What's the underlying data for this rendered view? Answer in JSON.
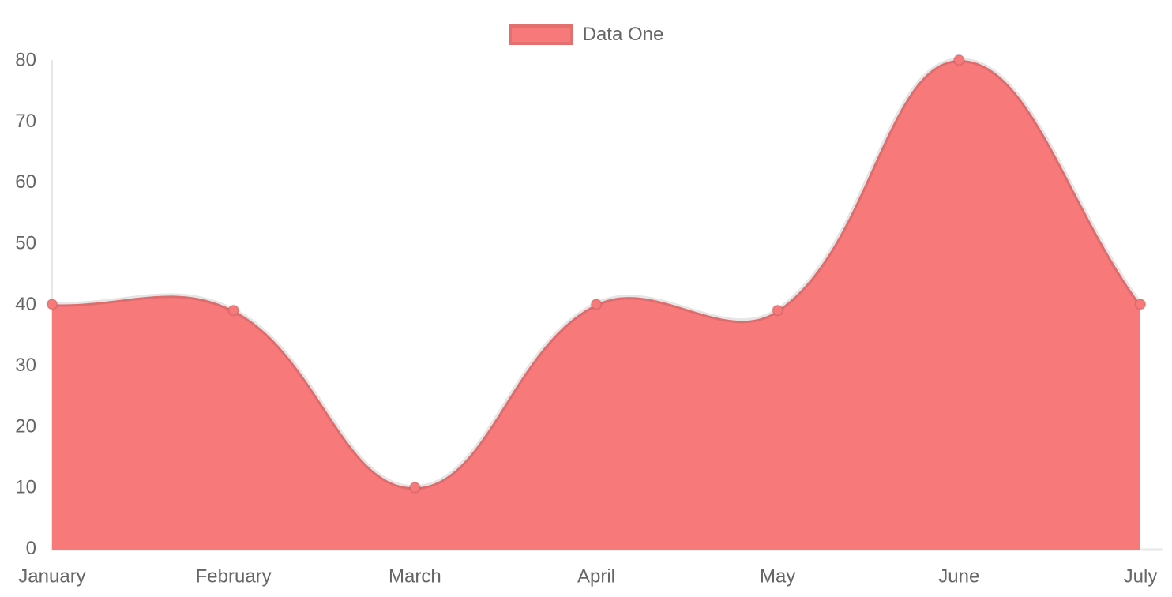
{
  "chart_data": {
    "type": "line",
    "fill": true,
    "smooth": true,
    "title": "",
    "xlabel": "",
    "ylabel": "",
    "categories": [
      "January",
      "February",
      "March",
      "April",
      "May",
      "June",
      "July"
    ],
    "series": [
      {
        "name": "Data One",
        "values": [
          40,
          39,
          10,
          40,
          39,
          80,
          40
        ]
      }
    ],
    "ylim": [
      0,
      80
    ],
    "y_ticks": [
      0,
      10,
      20,
      30,
      40,
      50,
      60,
      70,
      80
    ],
    "grid": false,
    "legend_position": "top",
    "colors": {
      "fill": "#f87979",
      "point": "#f87979",
      "line_border": "rgba(0,0,0,0.1)",
      "axis_line": "#e7e7e7",
      "tick_text": "#666666",
      "background": "#ffffff"
    }
  }
}
